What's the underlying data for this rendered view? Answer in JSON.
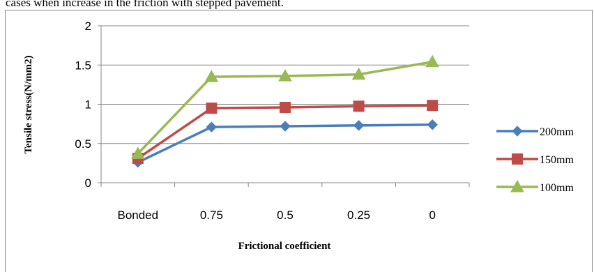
{
  "caption": "cases when increase in the friction with stepped pavement.",
  "chart_data": {
    "type": "line",
    "categories": [
      "Bonded",
      "0.75",
      "0.5",
      "0.25",
      "0"
    ],
    "ylim": [
      0,
      2
    ],
    "yticks": [
      "0",
      "0.5",
      "1",
      "1.5",
      "2"
    ],
    "xlabel": "Frictional coefficient",
    "ylabel": "Tensile stress(N/mm2)",
    "grid": true,
    "legend": "right",
    "series": [
      {
        "name": "200mm",
        "color": "#4a7ebb",
        "marker": "diamond",
        "values": [
          0.26,
          0.71,
          0.72,
          0.73,
          0.74
        ]
      },
      {
        "name": "150mm",
        "color": "#be4b48",
        "marker": "square",
        "values": [
          0.31,
          0.95,
          0.96,
          0.975,
          0.985
        ]
      },
      {
        "name": "100mm",
        "color": "#98b954",
        "marker": "triangle",
        "values": [
          0.37,
          1.35,
          1.36,
          1.38,
          1.54
        ]
      }
    ]
  }
}
